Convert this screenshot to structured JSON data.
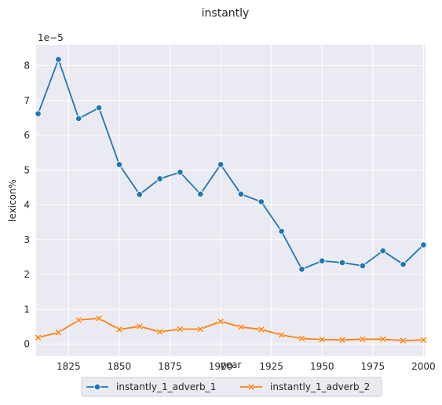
{
  "chart_data": {
    "type": "line",
    "title": "instantly",
    "xlabel": "year",
    "ylabel": "lexicon%",
    "y_offset_label": "1e−5",
    "xlim": [
      1809,
      2001
    ],
    "ylim": [
      -0.35,
      8.6
    ],
    "x_ticks": [
      1825,
      1850,
      1875,
      1900,
      1925,
      1950,
      1975,
      2000
    ],
    "y_ticks": [
      0,
      1,
      2,
      3,
      4,
      5,
      6,
      7,
      8
    ],
    "grid": true,
    "legend_position": "bottom-center",
    "series": [
      {
        "name": "instantly_1_adverb_1",
        "color": "#1f77b4",
        "marker": "circle",
        "x": [
          1810,
          1820,
          1830,
          1840,
          1850,
          1860,
          1870,
          1880,
          1890,
          1900,
          1910,
          1920,
          1930,
          1940,
          1950,
          1960,
          1970,
          1980,
          1990,
          2000
        ],
        "values": [
          6.62,
          8.18,
          6.48,
          6.79,
          5.16,
          4.3,
          4.75,
          4.94,
          4.31,
          5.16,
          4.31,
          4.09,
          3.24,
          2.15,
          2.39,
          2.34,
          2.25,
          2.68,
          2.29,
          2.85
        ]
      },
      {
        "name": "instantly_1_adverb_2",
        "color": "#ff7f0e",
        "marker": "x",
        "x": [
          1810,
          1820,
          1830,
          1840,
          1850,
          1860,
          1870,
          1880,
          1890,
          1900,
          1910,
          1920,
          1930,
          1940,
          1950,
          1960,
          1970,
          1980,
          1990,
          2000
        ],
        "values": [
          0.19,
          0.33,
          0.69,
          0.74,
          0.42,
          0.51,
          0.35,
          0.43,
          0.43,
          0.65,
          0.49,
          0.42,
          0.26,
          0.16,
          0.13,
          0.12,
          0.14,
          0.14,
          0.1,
          0.12
        ]
      }
    ]
  }
}
